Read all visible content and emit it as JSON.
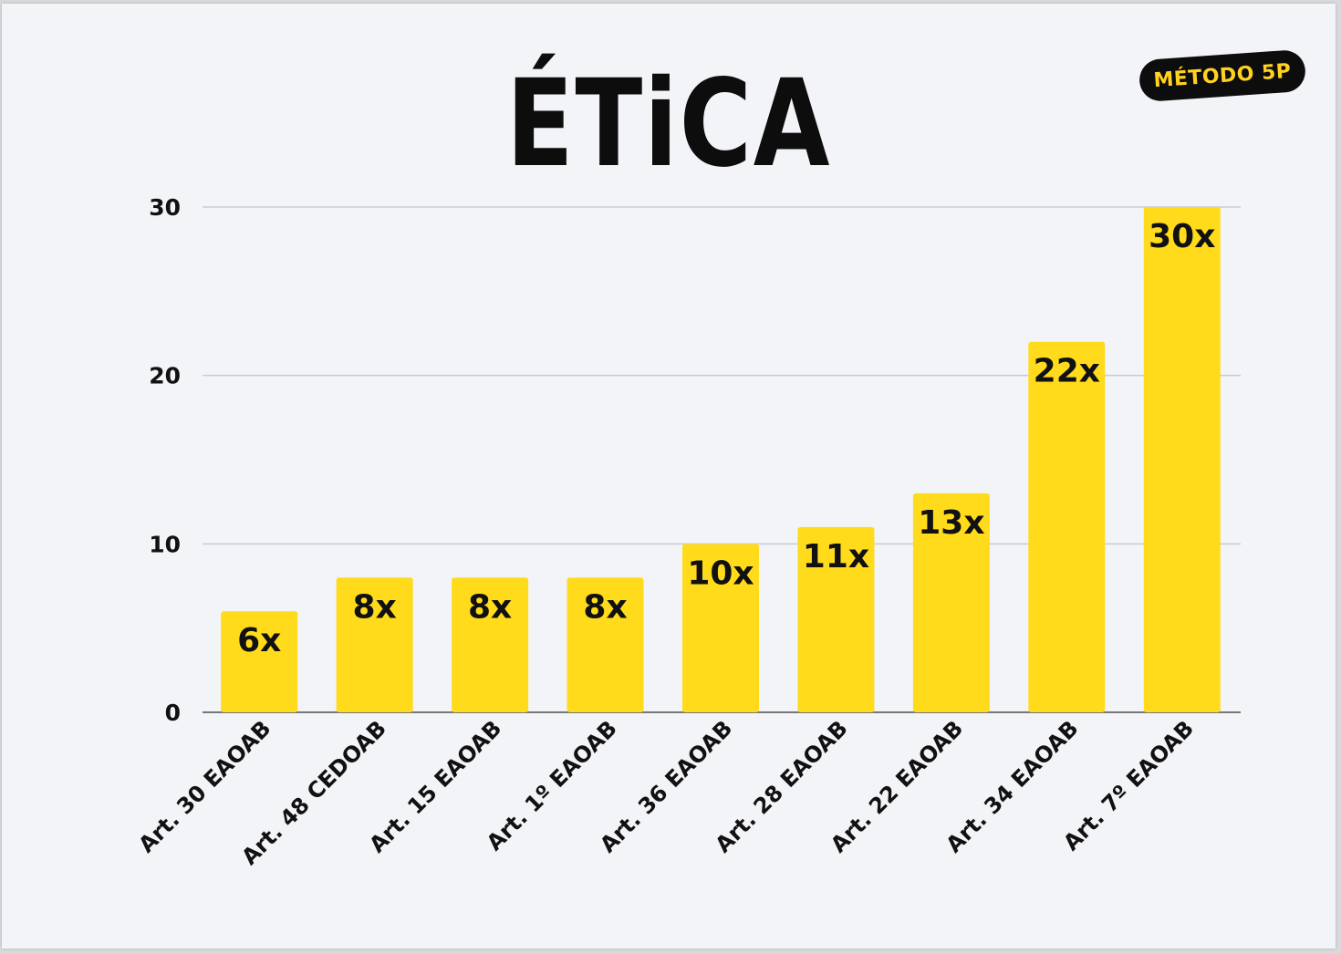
{
  "header": {
    "title": "ÉTiCA",
    "badge": "MÉTODO 5P"
  },
  "colors": {
    "bar": "#ffdb1c",
    "grid": "#c9cbd1",
    "axis": "#777777",
    "background": "#f3f4f8",
    "badge_bg": "#0d0d0d",
    "badge_text": "#ffd21f"
  },
  "chart_data": {
    "type": "bar",
    "title": "ÉTiCA",
    "xlabel": "",
    "ylabel": "",
    "ylim": [
      0,
      30
    ],
    "yticks": [
      0,
      10,
      20,
      30
    ],
    "grid": true,
    "legend": "none",
    "categories": [
      "Art. 30 EAOAB",
      "Art. 48 CEDOAB",
      "Art. 15 EAOAB",
      "Art. 1º EAOAB",
      "Art. 36 EAOAB",
      "Art. 28 EAOAB",
      "Art. 22 EAOAB",
      "Art. 34 EAOAB",
      "Art. 7º EAOAB"
    ],
    "values": [
      6,
      8,
      8,
      8,
      10,
      11,
      13,
      22,
      30
    ],
    "data_labels": [
      "6x",
      "8x",
      "8x",
      "8x",
      "10x",
      "11x",
      "13x",
      "22x",
      "30x"
    ]
  }
}
